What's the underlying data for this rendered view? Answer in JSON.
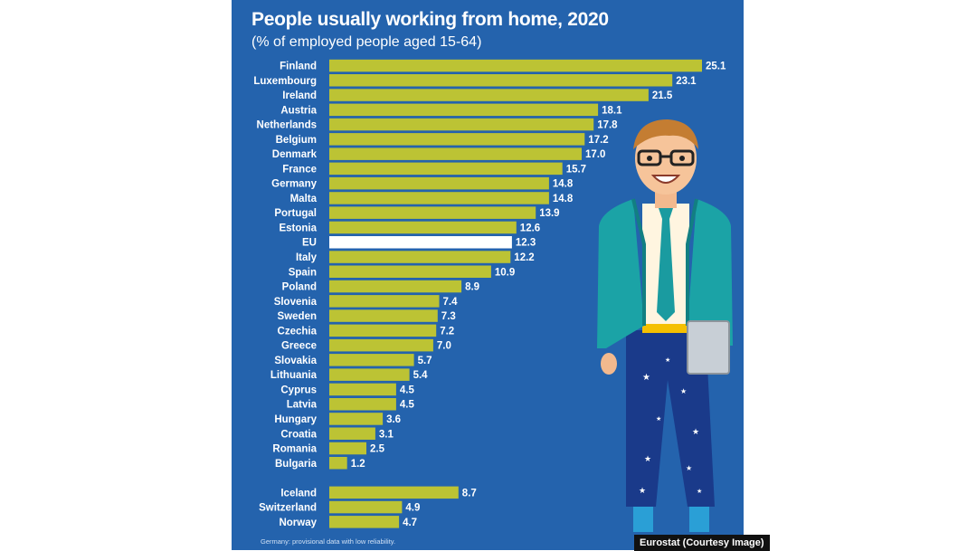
{
  "chart_data": {
    "type": "bar",
    "orientation": "horizontal",
    "title": "People usually working from home, 2020",
    "subtitle": "(% of employed people aged 15-64)",
    "categories": [
      "Finland",
      "Luxembourg",
      "Ireland",
      "Austria",
      "Netherlands",
      "Belgium",
      "Denmark",
      "France",
      "Germany",
      "Malta",
      "Portugal",
      "Estonia",
      "EU",
      "Italy",
      "Spain",
      "Poland",
      "Slovenia",
      "Sweden",
      "Czechia",
      "Greece",
      "Slovakia",
      "Lithuania",
      "Cyprus",
      "Latvia",
      "Hungary",
      "Croatia",
      "Romania",
      "Bulgaria",
      "Iceland",
      "Switzerland",
      "Norway"
    ],
    "values": [
      25.1,
      23.1,
      21.5,
      18.1,
      17.8,
      17.2,
      17.0,
      15.7,
      14.8,
      14.8,
      13.9,
      12.6,
      12.3,
      12.2,
      10.9,
      8.9,
      7.4,
      7.3,
      7.2,
      7.0,
      5.7,
      5.4,
      4.5,
      4.5,
      3.6,
      3.1,
      2.5,
      1.2,
      8.7,
      4.9,
      4.7
    ],
    "value_labels": [
      "25.1",
      "23.1",
      "21.5",
      "18.1",
      "17.8",
      "17.2",
      "17.0",
      "15.7",
      "14.8",
      "14.8",
      "13.9",
      "12.6",
      "12.3",
      "12.2",
      "10.9",
      "8.9",
      "7.4",
      "7.3",
      "7.2",
      "7.0",
      "5.7",
      "5.4",
      "4.5",
      "4.5",
      "3.6",
      "3.1",
      "2.5",
      "1.2",
      "8.7",
      "4.9",
      "4.7"
    ],
    "highlight": "EU",
    "xlim": [
      0,
      25.1
    ],
    "grid": false,
    "legend": "none"
  },
  "colors": {
    "background": "#2463ad",
    "bar": "#bcc334",
    "highlight_bar": "#ffffff",
    "text": "#ffffff"
  },
  "footnote": "Germany: provisional data with low reliability.",
  "credit": "Eurostat (Courtesy Image)"
}
